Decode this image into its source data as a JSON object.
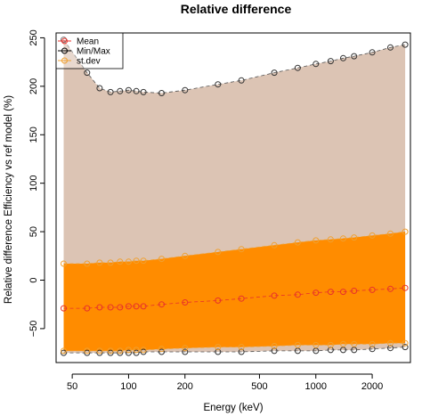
{
  "chart_data": {
    "type": "area",
    "title": "Relative difference",
    "xlabel": "Energy (keV)",
    "ylabel": "Relative difference Efficiency vs ref model  (%)",
    "x_scale": "log",
    "xlim": [
      41,
      3200
    ],
    "ylim": [
      -85,
      255
    ],
    "x_ticks": [
      50,
      100,
      200,
      500,
      1000,
      2000
    ],
    "y_ticks": [
      -50,
      0,
      50,
      100,
      150,
      200,
      250
    ],
    "grid": false,
    "legend": {
      "position": "top-left",
      "entries": [
        {
          "label": "Mean",
          "color": "#e8322a"
        },
        {
          "label": "Min/Max",
          "color": "#000000"
        },
        {
          "label": "st.dev",
          "color": "#f0a030"
        }
      ]
    },
    "x": [
      45,
      60,
      70,
      80,
      90,
      100,
      110,
      120,
      150,
      200,
      300,
      400,
      600,
      800,
      1000,
      1200,
      1400,
      1600,
      2000,
      2500,
      3000
    ],
    "series": [
      {
        "name": "Max",
        "values": [
          248,
          214,
          198,
          194,
          195,
          196,
          195,
          194,
          193,
          196,
          202,
          206,
          214,
          219,
          223,
          226,
          229,
          231,
          235,
          240,
          243
        ]
      },
      {
        "name": "Min",
        "values": [
          -75,
          -75,
          -75,
          -75,
          -75,
          -75,
          -75,
          -74,
          -74,
          -74,
          -74,
          -74,
          -73,
          -73,
          -73,
          -72,
          -72,
          -72,
          -71,
          -70,
          -69
        ]
      },
      {
        "name": "Mean",
        "values": [
          -29,
          -29,
          -28,
          -28,
          -28,
          -27,
          -27,
          -27,
          -25,
          -23,
          -21,
          -19,
          -16,
          -15,
          -13,
          -12,
          -12,
          -11,
          -10,
          -9,
          -8
        ]
      },
      {
        "name": "Mean + st.dev",
        "values": [
          17,
          17,
          18,
          18,
          19,
          19,
          20,
          20,
          22,
          25,
          29,
          32,
          36,
          39,
          41,
          42,
          43,
          44,
          46,
          48,
          50
        ]
      },
      {
        "name": "Mean - st.dev",
        "values": [
          -73,
          -73,
          -73,
          -73,
          -73,
          -72,
          -72,
          -72,
          -71,
          -70,
          -69,
          -69,
          -68,
          -67,
          -67,
          -67,
          -66,
          -66,
          -66,
          -65,
          -65
        ]
      }
    ],
    "colors": {
      "minmax_fill": "#dcc4b4",
      "stdev_fill": "#ff8c00",
      "mean": "#e8322a",
      "minmax_points": "#333333",
      "stdev_points": "#f0a030"
    }
  }
}
